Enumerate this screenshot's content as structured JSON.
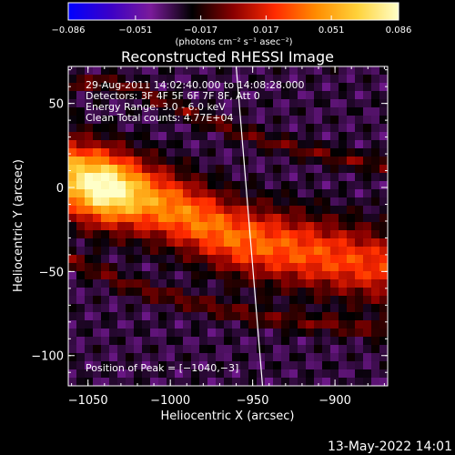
{
  "chart_data": {
    "type": "heatmap",
    "title": "Reconstructed RHESSI Image",
    "xlabel": "Heliocentric X (arcsec)",
    "ylabel": "Heliocentric Y (arcsec)",
    "xlim": [
      -1062,
      -868
    ],
    "ylim": [
      -118,
      72
    ],
    "x_ticks": [
      -1050,
      -1000,
      -950,
      -900
    ],
    "x_tick_labels": [
      "−1050",
      "−1000",
      "−950",
      "−900"
    ],
    "y_ticks": [
      -100,
      -50,
      0,
      50
    ],
    "y_tick_labels": [
      "−100",
      "−50",
      "0",
      "50"
    ],
    "colorbar": {
      "min": -0.086,
      "max": 0.086,
      "ticks": [
        -0.086,
        -0.051,
        -0.017,
        0.017,
        0.051,
        0.086
      ],
      "tick_labels": [
        "−0.086",
        "−0.051",
        "−0.017",
        "0.017",
        "0.051",
        "0.086"
      ],
      "unit_label": "(photons cm⁻² s⁻¹ asec⁻²)",
      "colors": [
        "#0000ff",
        "#3a00c8",
        "#7a1a9a",
        "#000000",
        "#8a0000",
        "#ff2a00",
        "#ff8c00",
        "#ffd23a",
        "#ffffc8"
      ]
    },
    "info_lines": [
      "29-Aug-2011 14:02:40.000 to 14:08:28.000",
      "Detectors: 3F 4F 5F 6F 7F 8F, Att 0",
      "Energy Range: 3.0 - 6.0 keV",
      "Clean    Total counts: 4.77E+04"
    ],
    "peak_label": "Position of Peak = [−1040,−3]",
    "peak": [
      -1040,
      -3
    ],
    "limb_line": [
      [
        -960,
        72
      ],
      [
        -944,
        -118
      ]
    ],
    "features": [
      {
        "name": "emission band",
        "centre_line": [
          [
            -1062,
            8
          ],
          [
            -1040,
            2
          ],
          [
            -1000,
            -12
          ],
          [
            -960,
            -30
          ],
          [
            -920,
            -38
          ],
          [
            -868,
            -48
          ]
        ],
        "half_width": 24,
        "peak_value": 0.086
      },
      {
        "name": "upper dark lane",
        "centre_line": [
          [
            -1030,
            62
          ],
          [
            -990,
            45
          ],
          [
            -950,
            30
          ],
          [
            -910,
            20
          ],
          [
            -868,
            12
          ]
        ],
        "half_width": 8,
        "value": -0.004
      },
      {
        "name": "lower dark lane",
        "centre_line": [
          [
            -1062,
            -42
          ],
          [
            -1020,
            -60
          ],
          [
            -980,
            -70
          ],
          [
            -940,
            -78
          ],
          [
            -900,
            -82
          ],
          [
            -868,
            -86
          ]
        ],
        "half_width": 9,
        "value": -0.004
      }
    ],
    "background_value": -0.03
  },
  "footer_timestamp": "13-May-2022 14:01"
}
